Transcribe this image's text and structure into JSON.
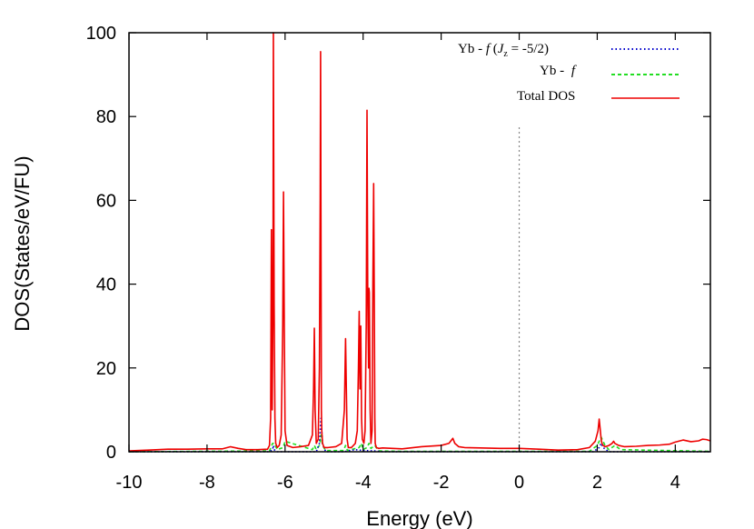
{
  "chart_data": {
    "type": "line",
    "title": "",
    "xlabel": "Energy (eV)",
    "ylabel": "DOS(States/eV/FU)",
    "xlim": [
      -10,
      4.9
    ],
    "ylim": [
      0,
      100
    ],
    "xticks": [
      -10,
      -8,
      -6,
      -4,
      -2,
      0,
      2,
      4
    ],
    "xtick_labels": [
      "-10",
      "-8",
      "-6",
      "-4",
      "-2",
      "0",
      "2",
      "4"
    ],
    "yticks": [
      0,
      20,
      40,
      60,
      80,
      100
    ],
    "ytick_labels": [
      "0",
      "20",
      "40",
      "60",
      "80",
      "100"
    ],
    "legend_position": "top-right",
    "fermi_line": {
      "x": 0,
      "y_max": 78,
      "color": "#888888"
    },
    "series": [
      {
        "name": "Yb - f (Jz = -5/2)",
        "legend_parts": {
          "prefix": "Yb - ",
          "f": "f",
          "open": " (",
          "J": "J",
          "sub": "z",
          "rest": " = -5/2)"
        },
        "color": "#0000cc",
        "style": "dotted",
        "x": [
          -10,
          -6.4,
          -6.32,
          -6.3,
          -6.28,
          -6.2,
          -5.2,
          -5.12,
          -5.08,
          -5.04,
          -4.96,
          -4.5,
          -4.2,
          -4.0,
          -3.7,
          -3.5,
          1.9,
          2.05,
          2.1,
          2.15,
          2.3,
          4.9
        ],
        "y": [
          0.0,
          0.0,
          0.5,
          1.5,
          0.5,
          0.0,
          0.0,
          2.0,
          8.0,
          2.0,
          0.0,
          0.0,
          0.5,
          0.3,
          0.2,
          0.0,
          0.0,
          1.0,
          2.0,
          1.0,
          0.0,
          0.0
        ]
      },
      {
        "name": "Yb - f",
        "legend_parts": {
          "prefix": "Yb - ",
          "f": "f"
        },
        "color": "#22dd22",
        "style": "dashed",
        "x": [
          -10,
          -6.4,
          -6.32,
          -6.28,
          -6.2,
          -6.05,
          -6.0,
          -5.3,
          -5.25,
          -5.2,
          -5.12,
          -5.08,
          -5.04,
          -4.96,
          -4.5,
          -4.45,
          -4.4,
          -4.1,
          -4.05,
          -4.0,
          -3.9,
          -3.85,
          -3.8,
          -3.7,
          -3.65,
          -3.6,
          -3.0,
          1.8,
          2.0,
          2.1,
          2.2,
          2.3,
          2.45,
          2.6,
          4.9
        ],
        "y": [
          0.0,
          0.2,
          2.0,
          2.0,
          0.5,
          1.0,
          2.5,
          0.5,
          1.5,
          0.5,
          1.5,
          4.0,
          1.5,
          0.3,
          0.3,
          1.5,
          0.3,
          1.0,
          2.0,
          0.5,
          1.0,
          2.0,
          0.8,
          1.5,
          0.8,
          0.2,
          0.1,
          0.1,
          1.5,
          3.5,
          1.5,
          0.5,
          1.5,
          0.5,
          0.1
        ]
      },
      {
        "name": "Total DOS",
        "color": "#ee0000",
        "style": "solid",
        "x": [
          -10,
          -9.5,
          -9.0,
          -8.5,
          -8.0,
          -7.6,
          -7.4,
          -7.2,
          -7.0,
          -6.7,
          -6.45,
          -6.4,
          -6.37,
          -6.35,
          -6.33,
          -6.31,
          -6.3,
          -6.28,
          -6.26,
          -6.24,
          -6.2,
          -6.15,
          -6.1,
          -6.06,
          -6.04,
          -6.02,
          -6.0,
          -5.95,
          -5.8,
          -5.6,
          -5.4,
          -5.3,
          -5.27,
          -5.25,
          -5.23,
          -5.2,
          -5.15,
          -5.12,
          -5.1,
          -5.09,
          -5.08,
          -5.07,
          -5.06,
          -5.04,
          -5.0,
          -4.9,
          -4.7,
          -4.55,
          -4.48,
          -4.45,
          -4.43,
          -4.41,
          -4.38,
          -4.3,
          -4.2,
          -4.15,
          -4.12,
          -4.1,
          -4.08,
          -4.06,
          -4.05,
          -4.04,
          -4.02,
          -3.98,
          -3.95,
          -3.92,
          -3.9,
          -3.88,
          -3.86,
          -3.85,
          -3.84,
          -3.82,
          -3.8,
          -3.77,
          -3.75,
          -3.73,
          -3.71,
          -3.7,
          -3.69,
          -3.66,
          -3.6,
          -3.5,
          -3.0,
          -2.5,
          -2.0,
          -1.8,
          -1.7,
          -1.65,
          -1.55,
          -1.4,
          -1.0,
          -0.5,
          0.0,
          0.5,
          1.0,
          1.5,
          1.8,
          1.95,
          2.02,
          2.05,
          2.08,
          2.1,
          2.12,
          2.15,
          2.2,
          2.3,
          2.38,
          2.42,
          2.45,
          2.55,
          2.7,
          3.0,
          3.3,
          3.6,
          3.85,
          4.0,
          4.2,
          4.4,
          4.6,
          4.7,
          4.8,
          4.9
        ],
        "y": [
          0.2,
          0.4,
          0.6,
          0.6,
          0.7,
          0.7,
          1.2,
          0.8,
          0.5,
          0.5,
          0.6,
          1.5,
          8.0,
          53.0,
          10.0,
          35.0,
          100.0,
          35.0,
          8.0,
          2.0,
          1.0,
          1.5,
          4.0,
          30.0,
          62.0,
          30.0,
          5.0,
          1.5,
          1.0,
          1.2,
          1.5,
          4.0,
          15.0,
          29.5,
          10.0,
          2.0,
          3.0,
          20.0,
          60.0,
          95.5,
          55.0,
          10.0,
          5.0,
          2.0,
          1.0,
          1.0,
          1.2,
          2.0,
          10.0,
          27.0,
          15.0,
          3.0,
          1.0,
          1.0,
          2.0,
          5.0,
          20.0,
          33.5,
          15.0,
          30.0,
          20.0,
          8.0,
          3.0,
          2.0,
          5.0,
          30.0,
          81.5,
          35.0,
          20.0,
          39.0,
          38.0,
          10.0,
          2.0,
          5.0,
          40.0,
          64.0,
          30.0,
          8.0,
          2.0,
          1.0,
          0.8,
          0.9,
          0.7,
          1.2,
          1.5,
          2.0,
          3.2,
          2.0,
          1.2,
          1.0,
          0.9,
          0.8,
          0.8,
          0.6,
          0.4,
          0.5,
          1.0,
          2.5,
          5.0,
          7.8,
          5.0,
          3.0,
          2.0,
          1.5,
          1.2,
          1.5,
          2.0,
          2.5,
          2.0,
          1.5,
          1.2,
          1.3,
          1.5,
          1.6,
          1.8,
          2.3,
          2.8,
          2.4,
          2.6,
          3.0,
          2.9,
          2.6
        ]
      }
    ]
  }
}
